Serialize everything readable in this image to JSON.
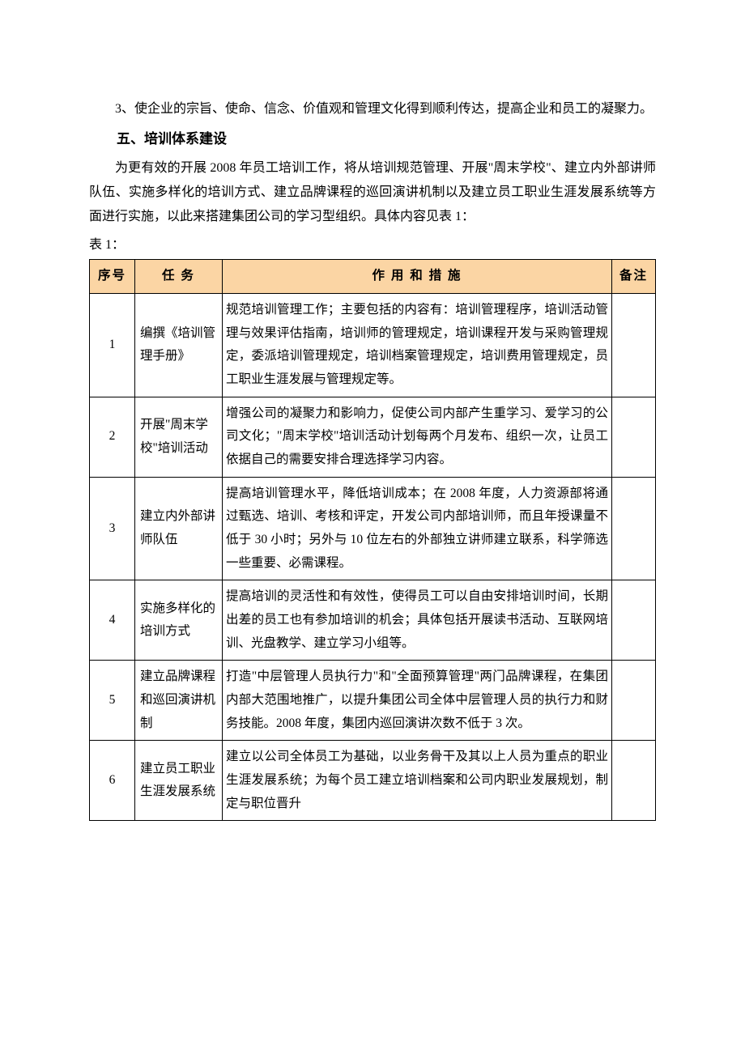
{
  "intro": {
    "para1": "3、使企业的宗旨、使命、信念、价值观和管理文化得到顺利传达，提高企业和员工的凝聚力。",
    "heading": "五、培训体系建设",
    "para2": "为更有效的开展 2008 年员工培训工作，将从培训规范管理、开展\"周末学校\"、建立内外部讲师队伍、实施多样化的培训方式、建立品牌课程的巡回演讲机制以及建立员工职业生涯发展系统等方面进行实施，以此来搭建集团公司的学习型组织。具体内容见表 1：",
    "table_label": "表 1："
  },
  "table": {
    "header_bg": "#fbd5a4",
    "border_color": "#000000",
    "columns": {
      "seq": "序号",
      "task": "任  务",
      "action": "作 用 和 措 施",
      "note": "备注"
    },
    "rows": [
      {
        "seq": "1",
        "task": "编撰《培训管理手册》",
        "action": "规范培训管理工作；主要包括的内容有：培训管理程序，培训活动管理与效果评估指南，培训师的管理规定，培训课程开发与采购管理规定，委派培训管理规定，培训档案管理规定，培训费用管理规定，员工职业生涯发展与管理规定等。",
        "note": ""
      },
      {
        "seq": "2",
        "task": "开展\"周末学校\"培训活动",
        "action": "增强公司的凝聚力和影响力，促使公司内部产生重学习、爱学习的公司文化；\"周末学校\"培训活动计划每两个月发布、组织一次，让员工依据自己的需要安排合理选择学习内容。",
        "note": ""
      },
      {
        "seq": "3",
        "task": "建立内外部讲师队伍",
        "action": "提高培训管理水平，降低培训成本；在 2008 年度，人力资源部将通过甄选、培训、考核和评定，开发公司内部培训师，而且年授课量不低于 30 小时；另外与 10 位左右的外部独立讲师建立联系，科学筛选一些重要、必需课程。",
        "note": ""
      },
      {
        "seq": "4",
        "task": "实施多样化的培训方式",
        "action": "提高培训的灵活性和有效性，使得员工可以自由安排培训时间，长期出差的员工也有参加培训的机会；具体包括开展读书活动、互联网培训、光盘教学、建立学习小组等。",
        "note": ""
      },
      {
        "seq": "5",
        "task": "建立品牌课程和巡回演讲机制",
        "action": "打造\"中层管理人员执行力\"和\"全面预算管理\"两门品牌课程，在集团内部大范围地推广，以提升集团公司全体中层管理人员的执行力和财务技能。2008 年度，集团内巡回演讲次数不低于 3 次。",
        "note": ""
      },
      {
        "seq": "6",
        "task": "建立员工职业生涯发展系统",
        "action": "建立以公司全体员工为基础，以业务骨干及其以上人员为重点的职业生涯发展系统；为每个员工建立培训档案和公司内职业发展规划，制定与职位晋升",
        "note": ""
      }
    ]
  }
}
